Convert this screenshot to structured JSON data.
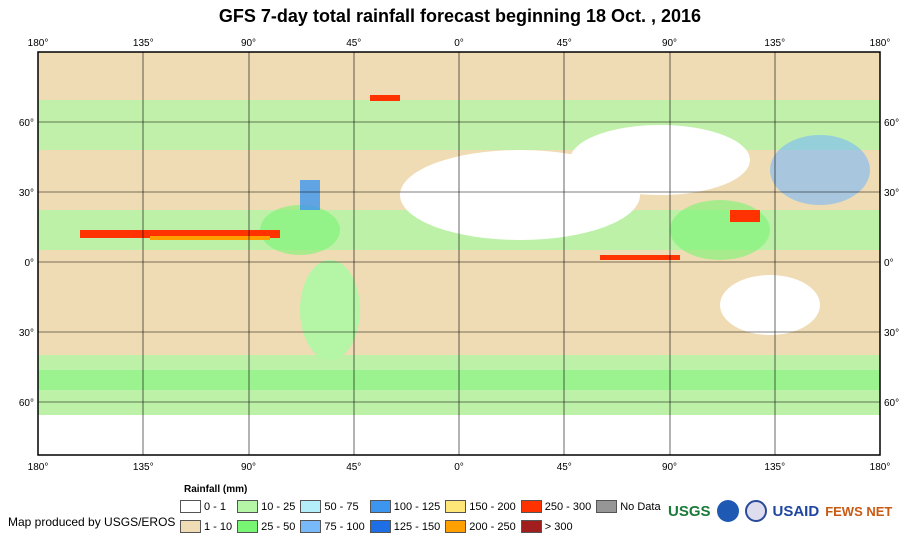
{
  "title": "GFS 7-day total rainfall forecast beginning 18 Oct. , 2016",
  "lon_ticks": [
    "180°",
    "135°",
    "90°",
    "45°",
    "0°",
    "45°",
    "90°",
    "135°",
    "180°"
  ],
  "lat_ticks": [
    "60°",
    "30°",
    "0°",
    "30°",
    "60°"
  ],
  "legend": {
    "title": "Rainfall (mm)",
    "items": [
      {
        "label": "0 - 1",
        "color": "#ffffff"
      },
      {
        "label": "10 - 25",
        "color": "#b4f5a6"
      },
      {
        "label": "50 - 75",
        "color": "#b4eefa"
      },
      {
        "label": "100 - 125",
        "color": "#3c96f0"
      },
      {
        "label": "150 - 200",
        "color": "#ffe678"
      },
      {
        "label": "250 - 300",
        "color": "#ff3200"
      },
      {
        "label": "No Data",
        "color": "#969696"
      },
      {
        "label": "1 - 10",
        "color": "#f0dcb4"
      },
      {
        "label": "25 - 50",
        "color": "#78f573"
      },
      {
        "label": "75 - 100",
        "color": "#78b9fa"
      },
      {
        "label": "125 - 150",
        "color": "#1e6ee6"
      },
      {
        "label": "200 - 250",
        "color": "#ffa000"
      },
      {
        "label": "> 300",
        "color": "#a01e1e"
      }
    ]
  },
  "credit": "Map produced by USGS/EROS",
  "logos": {
    "usgs": "USGS",
    "usaid": "USAID",
    "fews": "FEWS NET"
  }
}
